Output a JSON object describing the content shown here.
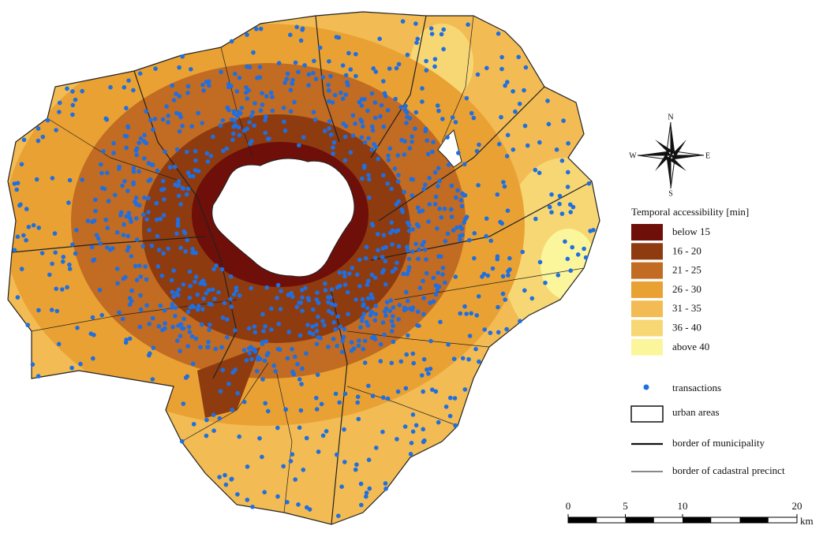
{
  "compass": {
    "north": "N",
    "east": "E",
    "south": "S",
    "west": "W"
  },
  "legend": {
    "title": "Temporal accessibility [min]",
    "classes": [
      {
        "label": "below 15",
        "color": "#6e0f09"
      },
      {
        "label": "16 - 20",
        "color": "#8e3b10"
      },
      {
        "label": "21 - 25",
        "color": "#c16b23"
      },
      {
        "label": "26 - 30",
        "color": "#e9a133"
      },
      {
        "label": "31 - 35",
        "color": "#f2bb53"
      },
      {
        "label": "36 - 40",
        "color": "#f7d774"
      },
      {
        "label": "above 40",
        "color": "#fbf69c"
      }
    ],
    "symbols": [
      {
        "label": "transactions",
        "color": "#1f6fe0"
      },
      {
        "label": "urban areas"
      },
      {
        "label": "border of municipality"
      },
      {
        "label": "border of cadastral precinct"
      }
    ]
  },
  "scale_bar": {
    "ticks": [
      0,
      5,
      10,
      20
    ],
    "unit": "km"
  }
}
